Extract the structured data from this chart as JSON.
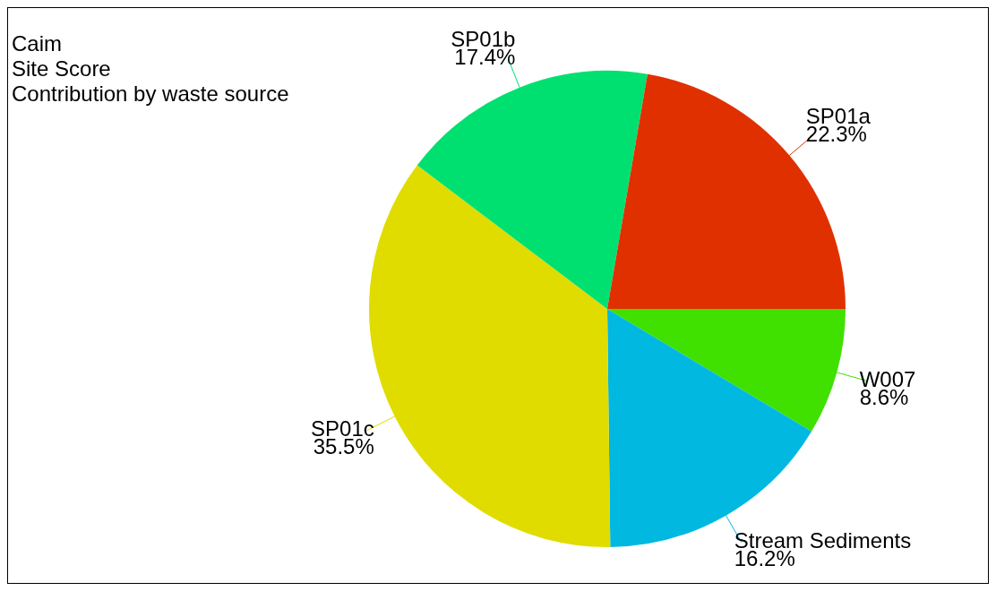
{
  "chart_data": {
    "type": "pie",
    "title": "Caim",
    "subtitle": "Site Score\nContribution by waste source",
    "categories": [
      "W007",
      "Stream Sediments",
      "SP01c",
      "SP01b",
      "SP01a"
    ],
    "values": [
      8.6,
      16.2,
      35.5,
      17.4,
      22.3
    ],
    "value_labels": [
      "8.6%",
      "16.2%",
      "35.5%",
      "17.4%",
      "22.3%"
    ],
    "colors": [
      "#40e000",
      "#00b8e0",
      "#e0dc00",
      "#00e070",
      "#e03000"
    ],
    "legend": false
  }
}
